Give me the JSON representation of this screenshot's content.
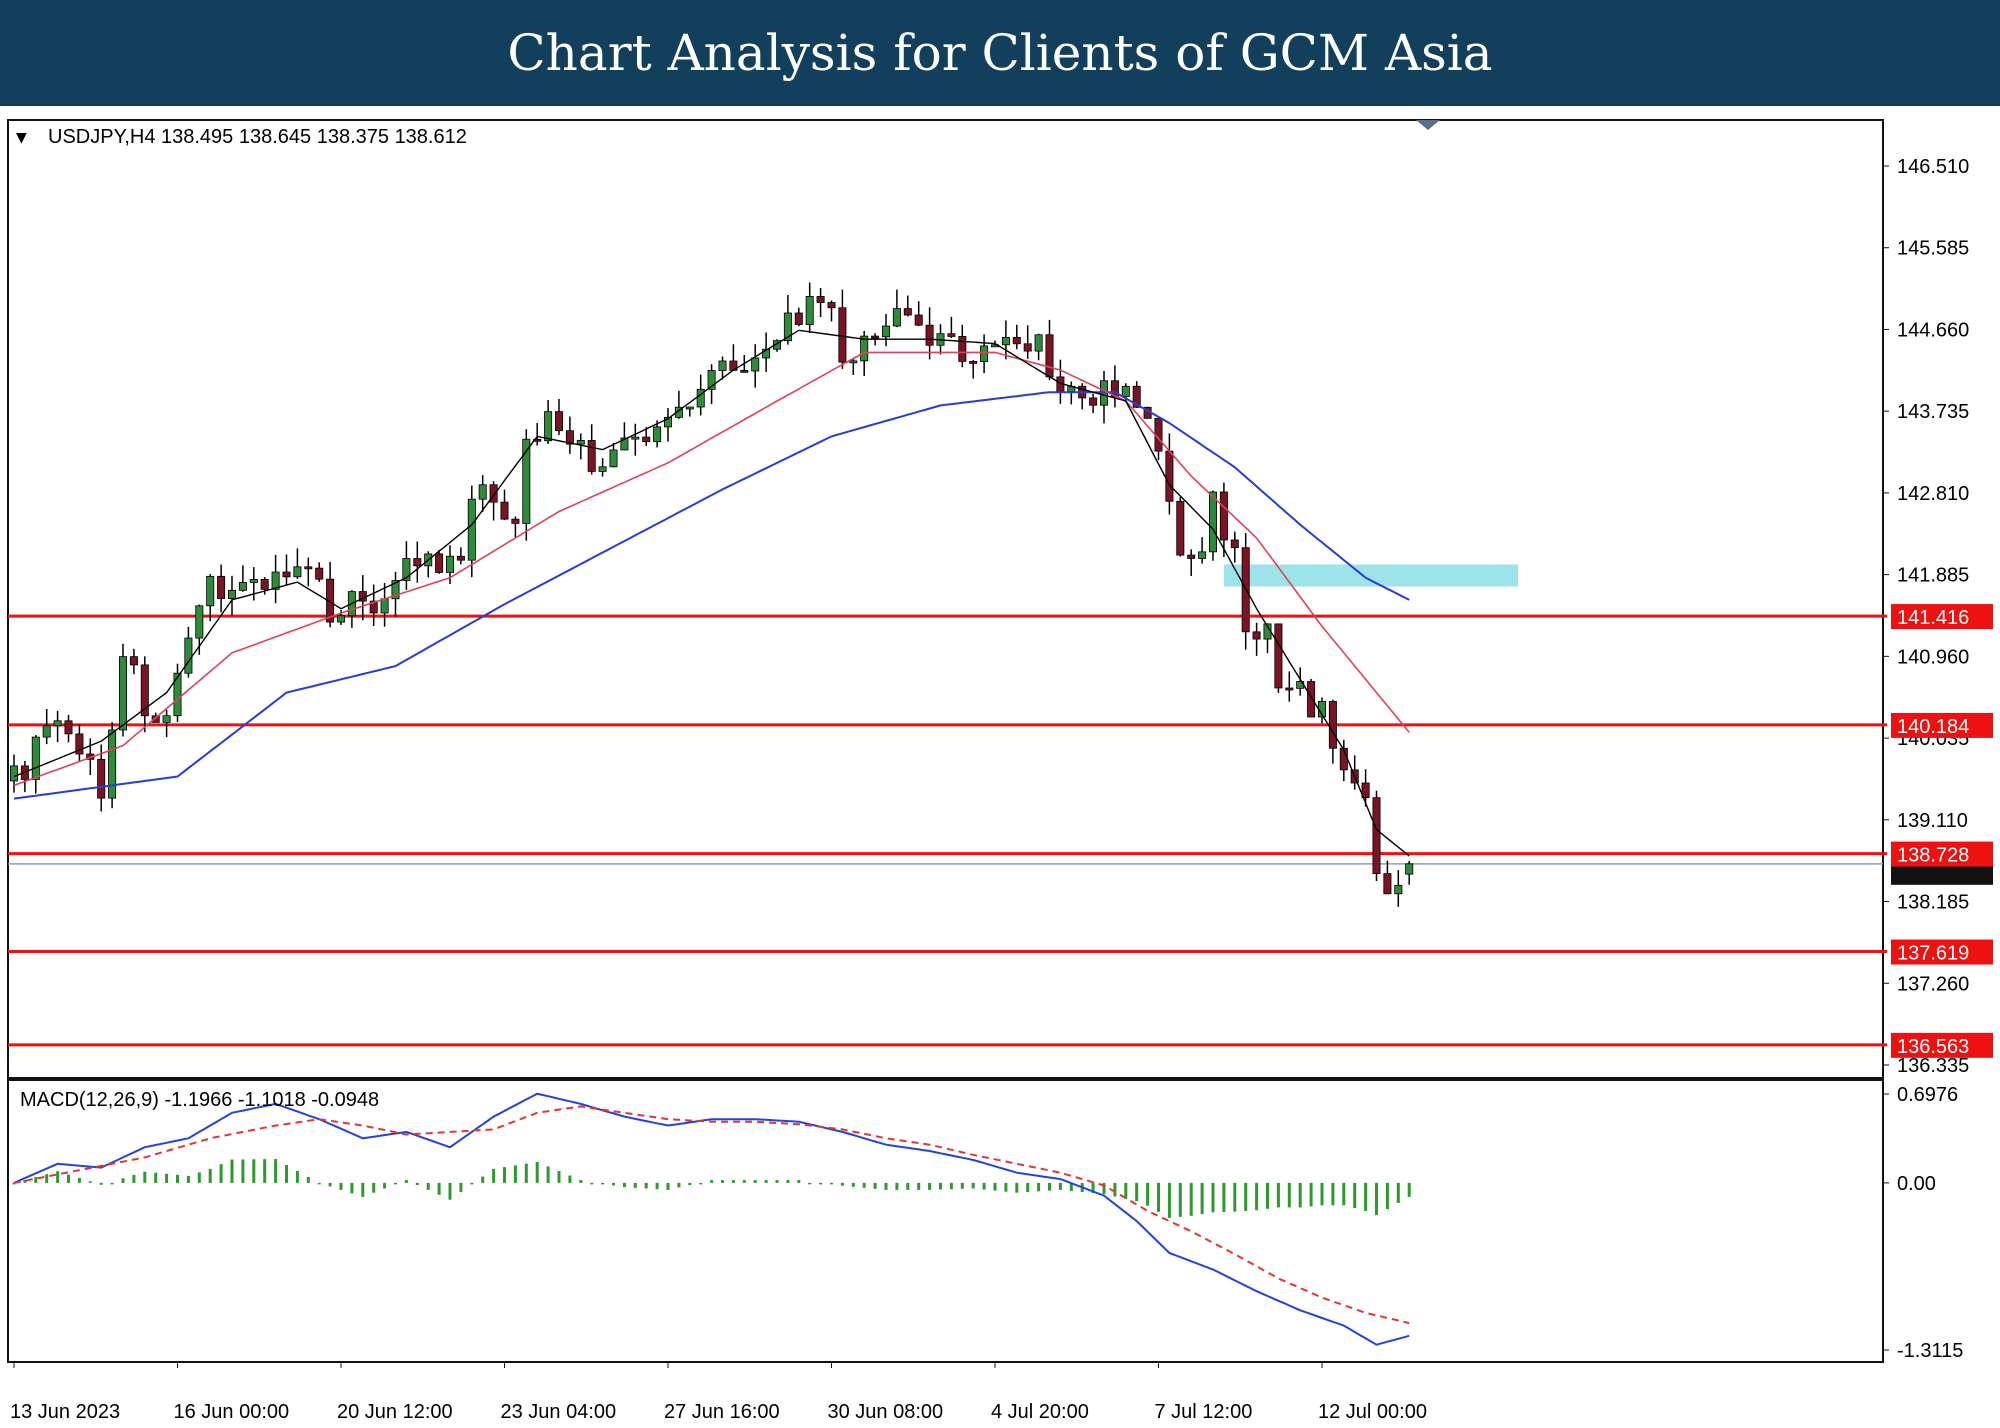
{
  "banner": {
    "title": "Chart Analysis for Clients of GCM Asia"
  },
  "colors": {
    "banner_bg": "#123f5c",
    "bull_candle": "#2e8b3a",
    "bear_candle": "#7a1424",
    "ema_fast": "#000000",
    "ema_mid": "#e0405a",
    "ema_slow": "#2a3bd8",
    "level_line": "#ee1111",
    "resistance_zone": "#9fe3ea",
    "macd_line": "#2244dd",
    "signal_line": "#e43535",
    "histogram": "#2e9a2e",
    "current_price_line": "#8aa0b8"
  },
  "chart_data": {
    "type": "candlestick",
    "header": "USDJPY,H4  138.495 138.645 138.375 138.612",
    "symbol": "USDJPY",
    "timeframe": "H4",
    "ohlc_last": {
      "open": 138.495,
      "high": 138.645,
      "low": 138.375,
      "close": 138.612
    },
    "ylim": [
      136.335,
      146.51
    ],
    "y_ticks": [
      "146.510",
      "145.585",
      "144.660",
      "143.735",
      "142.810",
      "141.885",
      "140.960",
      "140.035",
      "139.110",
      "138.185",
      "137.260",
      "136.335"
    ],
    "x_ticks": [
      {
        "label": "13 Jun 2023",
        "bar": 0
      },
      {
        "label": "16 Jun 00:00",
        "bar": 15
      },
      {
        "label": "20 Jun 12:00",
        "bar": 30
      },
      {
        "label": "23 Jun 04:00",
        "bar": 45
      },
      {
        "label": "27 Jun 16:00",
        "bar": 60
      },
      {
        "label": "30 Jun 08:00",
        "bar": 75
      },
      {
        "label": "4 Jul 20:00",
        "bar": 90
      },
      {
        "label": "7 Jul 12:00",
        "bar": 105
      },
      {
        "label": "12 Jul 00:00",
        "bar": 120
      }
    ],
    "levels": [
      {
        "label": "141.416",
        "value": 141.416
      },
      {
        "label": "140.184",
        "value": 140.184
      },
      {
        "label": "138.728",
        "value": 138.728
      },
      {
        "label": "137.619",
        "value": 137.619
      },
      {
        "label": "136.563",
        "value": 136.563
      }
    ],
    "current_price": 138.612,
    "resistance_zone": {
      "from": 141.75,
      "to": 142.0,
      "bar_start": 111,
      "bar_end": 138
    },
    "close_path": [
      [
        0,
        139.55
      ],
      [
        3,
        140.1
      ],
      [
        6,
        140.0
      ],
      [
        8,
        139.4
      ],
      [
        10,
        141.05
      ],
      [
        12,
        140.4
      ],
      [
        14,
        140.2
      ],
      [
        16,
        141.0
      ],
      [
        18,
        141.8
      ],
      [
        21,
        141.75
      ],
      [
        24,
        141.9
      ],
      [
        27,
        141.85
      ],
      [
        29,
        141.5
      ],
      [
        31,
        141.6
      ],
      [
        33,
        141.55
      ],
      [
        35,
        141.9
      ],
      [
        37,
        142.05
      ],
      [
        39,
        141.9
      ],
      [
        41,
        142.05
      ],
      [
        42,
        142.7
      ],
      [
        44,
        142.8
      ],
      [
        46,
        142.55
      ],
      [
        47,
        143.3
      ],
      [
        49,
        143.7
      ],
      [
        51,
        143.5
      ],
      [
        53,
        143.05
      ],
      [
        55,
        143.3
      ],
      [
        57,
        143.35
      ],
      [
        59,
        143.5
      ],
      [
        60,
        143.7
      ],
      [
        62,
        143.9
      ],
      [
        64,
        144.2
      ],
      [
        66,
        144.35
      ],
      [
        68,
        144.3
      ],
      [
        70,
        144.4
      ],
      [
        71,
        144.8
      ],
      [
        73,
        144.9
      ],
      [
        75,
        144.75
      ],
      [
        76,
        144.3
      ],
      [
        78,
        144.45
      ],
      [
        80,
        144.85
      ],
      [
        82,
        144.7
      ],
      [
        84,
        144.5
      ],
      [
        86,
        144.45
      ],
      [
        88,
        144.4
      ],
      [
        90,
        144.5
      ],
      [
        92,
        144.5
      ],
      [
        94,
        144.55
      ],
      [
        96,
        143.95
      ],
      [
        98,
        143.85
      ],
      [
        99,
        143.75
      ],
      [
        100,
        144.0
      ],
      [
        102,
        143.9
      ],
      [
        104,
        143.7
      ],
      [
        106,
        142.65
      ],
      [
        107,
        142.1
      ],
      [
        109,
        142.15
      ],
      [
        110,
        142.7
      ],
      [
        111,
        142.45
      ],
      [
        112,
        142.1
      ],
      [
        113,
        141.3
      ],
      [
        115,
        141.2
      ],
      [
        116,
        140.5
      ],
      [
        118,
        140.55
      ],
      [
        120,
        140.3
      ],
      [
        121,
        140.0
      ],
      [
        122,
        139.6
      ],
      [
        124,
        139.5
      ],
      [
        125,
        138.35
      ],
      [
        126,
        138.4
      ],
      [
        127,
        138.45
      ],
      [
        128,
        138.612
      ]
    ],
    "ema_fast_path": [
      [
        0,
        139.6
      ],
      [
        8,
        140.0
      ],
      [
        14,
        140.55
      ],
      [
        20,
        141.6
      ],
      [
        26,
        141.8
      ],
      [
        30,
        141.5
      ],
      [
        36,
        141.85
      ],
      [
        42,
        142.45
      ],
      [
        48,
        143.45
      ],
      [
        54,
        143.3
      ],
      [
        60,
        143.65
      ],
      [
        66,
        144.2
      ],
      [
        72,
        144.65
      ],
      [
        78,
        144.55
      ],
      [
        84,
        144.55
      ],
      [
        90,
        144.5
      ],
      [
        96,
        144.05
      ],
      [
        102,
        143.85
      ],
      [
        106,
        142.9
      ],
      [
        110,
        142.4
      ],
      [
        114,
        141.5
      ],
      [
        118,
        140.7
      ],
      [
        122,
        139.9
      ],
      [
        125,
        139.0
      ],
      [
        128,
        138.7
      ]
    ],
    "ema_mid_path": [
      [
        0,
        139.5
      ],
      [
        10,
        139.95
      ],
      [
        20,
        141.0
      ],
      [
        30,
        141.45
      ],
      [
        40,
        141.85
      ],
      [
        50,
        142.6
      ],
      [
        60,
        143.15
      ],
      [
        70,
        143.85
      ],
      [
        78,
        144.4
      ],
      [
        84,
        144.4
      ],
      [
        90,
        144.4
      ],
      [
        96,
        144.2
      ],
      [
        102,
        143.85
      ],
      [
        108,
        143.0
      ],
      [
        114,
        142.3
      ],
      [
        120,
        141.3
      ],
      [
        124,
        140.7
      ],
      [
        128,
        140.1
      ]
    ],
    "ema_slow_path": [
      [
        0,
        139.35
      ],
      [
        15,
        139.6
      ],
      [
        25,
        140.55
      ],
      [
        35,
        140.85
      ],
      [
        45,
        141.55
      ],
      [
        55,
        142.2
      ],
      [
        65,
        142.85
      ],
      [
        75,
        143.45
      ],
      [
        85,
        143.8
      ],
      [
        95,
        143.95
      ],
      [
        101,
        143.95
      ],
      [
        106,
        143.6
      ],
      [
        112,
        143.1
      ],
      [
        118,
        142.45
      ],
      [
        124,
        141.85
      ],
      [
        128,
        141.6
      ]
    ],
    "macd": {
      "header": "MACD(12,26,9) -1.1966 -1.1018 -0.0948",
      "params": [
        12,
        26,
        9
      ],
      "main": -1.1966,
      "signal": -1.1018,
      "histogram": -0.0948,
      "ylim": [
        -1.3115,
        0.6976
      ],
      "y_ticks": [
        "0.6976",
        "0.00",
        "-1.3115"
      ],
      "main_path": [
        [
          0,
          0.0
        ],
        [
          4,
          0.15
        ],
        [
          8,
          0.12
        ],
        [
          12,
          0.28
        ],
        [
          16,
          0.35
        ],
        [
          20,
          0.55
        ],
        [
          24,
          0.62
        ],
        [
          28,
          0.5
        ],
        [
          32,
          0.35
        ],
        [
          36,
          0.4
        ],
        [
          40,
          0.28
        ],
        [
          44,
          0.52
        ],
        [
          48,
          0.7
        ],
        [
          52,
          0.62
        ],
        [
          56,
          0.52
        ],
        [
          60,
          0.45
        ],
        [
          64,
          0.5
        ],
        [
          68,
          0.5
        ],
        [
          72,
          0.48
        ],
        [
          76,
          0.4
        ],
        [
          80,
          0.3
        ],
        [
          84,
          0.25
        ],
        [
          88,
          0.18
        ],
        [
          92,
          0.08
        ],
        [
          96,
          0.03
        ],
        [
          100,
          -0.1
        ],
        [
          103,
          -0.3
        ],
        [
          106,
          -0.55
        ],
        [
          110,
          -0.68
        ],
        [
          114,
          -0.85
        ],
        [
          118,
          -1.0
        ],
        [
          122,
          -1.12
        ],
        [
          125,
          -1.27
        ],
        [
          128,
          -1.2
        ]
      ],
      "signal_path": [
        [
          0,
          0.0
        ],
        [
          6,
          0.1
        ],
        [
          12,
          0.2
        ],
        [
          18,
          0.35
        ],
        [
          24,
          0.45
        ],
        [
          28,
          0.5
        ],
        [
          32,
          0.45
        ],
        [
          36,
          0.38
        ],
        [
          40,
          0.4
        ],
        [
          44,
          0.42
        ],
        [
          48,
          0.55
        ],
        [
          52,
          0.6
        ],
        [
          56,
          0.55
        ],
        [
          60,
          0.5
        ],
        [
          64,
          0.48
        ],
        [
          68,
          0.48
        ],
        [
          72,
          0.46
        ],
        [
          76,
          0.42
        ],
        [
          80,
          0.35
        ],
        [
          84,
          0.3
        ],
        [
          88,
          0.22
        ],
        [
          92,
          0.15
        ],
        [
          96,
          0.08
        ],
        [
          100,
          -0.02
        ],
        [
          104,
          -0.22
        ],
        [
          108,
          -0.38
        ],
        [
          112,
          -0.56
        ],
        [
          116,
          -0.75
        ],
        [
          120,
          -0.9
        ],
        [
          124,
          -1.02
        ],
        [
          128,
          -1.1
        ]
      ]
    }
  }
}
